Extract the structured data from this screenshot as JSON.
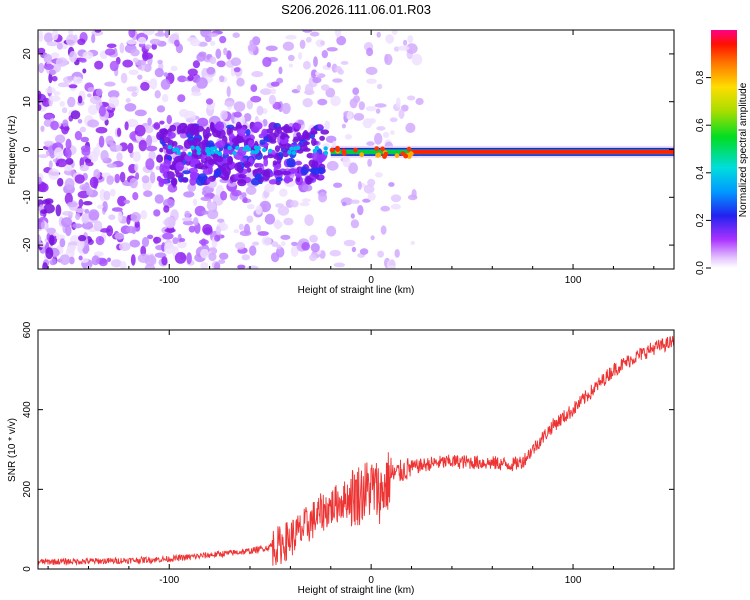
{
  "figure_title": "S206.2026.111.06.01.R03",
  "chart_data": [
    {
      "type": "heatmap",
      "title": "",
      "xlabel": "Height of straight line (km)",
      "ylabel": "Frequency (Hz)",
      "xlim": [
        -165,
        150
      ],
      "ylim": [
        -25,
        25
      ],
      "xticks": [
        -100,
        0,
        100
      ],
      "yticks": [
        -20,
        -10,
        0,
        10,
        20
      ],
      "colorbar": {
        "label": "Normalized spectral amplitude",
        "range": [
          0,
          1
        ],
        "ticks": [
          0.0,
          0.2,
          0.4,
          0.6,
          0.8
        ],
        "tick_labels": [
          "0.0",
          "0.2",
          "0.4",
          "0.6",
          "0.8"
        ]
      },
      "description_values": {
        "carrier_frequency_hz": -0.5,
        "noise_region_km": [
          -165,
          -25
        ],
        "strong_carrier_from_km": 20
      }
    },
    {
      "type": "line",
      "title": "",
      "xlabel": "Height of straight line (km)",
      "ylabel": "SNR (10 * v/v)",
      "xlim": [
        -165,
        150
      ],
      "ylim": [
        0,
        600
      ],
      "xticks": [
        -100,
        0,
        100
      ],
      "yticks": [
        0,
        200,
        400,
        600
      ],
      "series": [
        {
          "name": "SNR",
          "color": "#ee3333",
          "x": [
            -165,
            -130,
            -100,
            -80,
            -60,
            -45,
            -35,
            -25,
            -15,
            -5,
            0,
            5,
            10,
            20,
            30,
            40,
            50,
            60,
            70,
            75,
            80,
            85,
            90,
            100,
            110,
            120,
            130,
            140,
            150
          ],
          "y": [
            18,
            20,
            25,
            35,
            45,
            60,
            95,
            140,
            170,
            190,
            205,
            190,
            235,
            255,
            265,
            270,
            268,
            266,
            262,
            270,
            300,
            330,
            360,
            400,
            450,
            500,
            530,
            555,
            570
          ]
        }
      ]
    }
  ]
}
